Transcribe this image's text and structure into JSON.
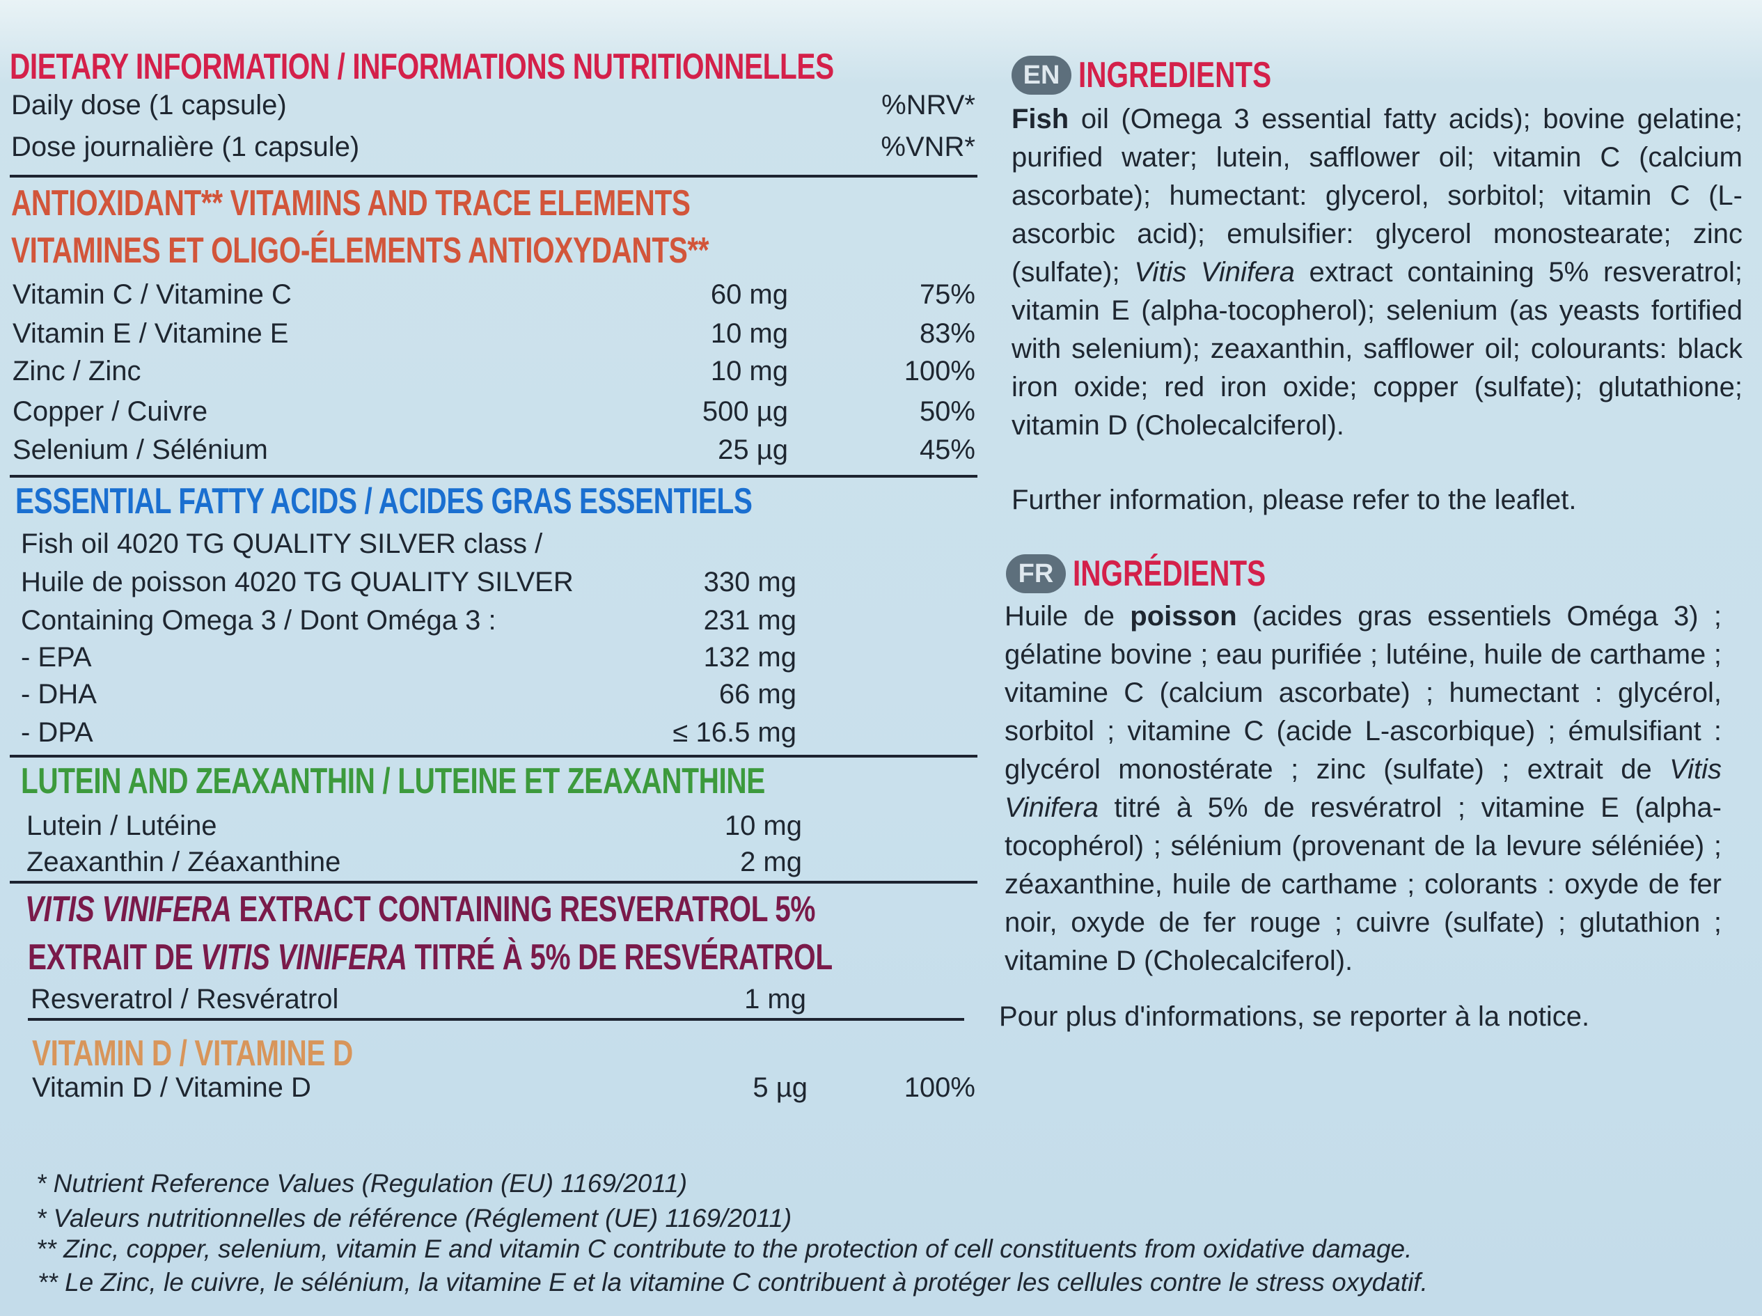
{
  "colors": {
    "background": "#cde2ec",
    "title": "#d4204a",
    "antioxidant": "#d2553a",
    "fatty_acids": "#1a6fd0",
    "lutein": "#3c9a3c",
    "vitis": "#7a1a4a",
    "vitamin_d": "#d8955a"
  },
  "dietary": {
    "title": "DIETARY INFORMATION / INFORMATIONS NUTRITIONNELLES",
    "dose_en": "Daily dose (1 capsule)",
    "nrv_en": "%NRV*",
    "dose_fr": "Dose journalière (1 capsule)",
    "nrv_fr": "%VNR*",
    "antioxidant": {
      "heading_en": "ANTIOXIDANT** VITAMINS AND TRACE ELEMENTS",
      "heading_fr": "VITAMINES ET OLIGO-ÉLEMENTS ANTIOXYDANTS**",
      "rows": [
        {
          "label": "Vitamin C / Vitamine C",
          "amount": "60 mg",
          "nrv": "75%"
        },
        {
          "label": "Vitamin E / Vitamine E",
          "amount": "10 mg",
          "nrv": "83%"
        },
        {
          "label": "Zinc / Zinc",
          "amount": "10 mg",
          "nrv": "100%"
        },
        {
          "label": "Copper / Cuivre",
          "amount": "500 µg",
          "nrv": "50%"
        },
        {
          "label": "Selenium / Sélénium",
          "amount": "25 µg",
          "nrv": "45%"
        }
      ]
    },
    "fatty_acids": {
      "heading": "ESSENTIAL FATTY ACIDS / ACIDES GRAS ESSENTIELS",
      "rows": [
        {
          "label": "Fish oil 4020 TG QUALITY SILVER class /",
          "amount": ""
        },
        {
          "label": "Huile de poisson 4020 TG QUALITY SILVER",
          "amount": "330 mg"
        },
        {
          "label": "Containing Omega 3 / Dont Oméga 3 :",
          "amount": "231 mg"
        },
        {
          "label": "- EPA",
          "amount": "132 mg"
        },
        {
          "label": "- DHA",
          "amount": "66 mg"
        },
        {
          "label": "- DPA",
          "amount": "≤ 16.5 mg"
        }
      ]
    },
    "lutein": {
      "heading": "LUTEIN AND ZEAXANTHIN / LUTEINE ET ZEAXANTHINE",
      "rows": [
        {
          "label": "Lutein / Lutéine",
          "amount": "10 mg"
        },
        {
          "label": "Zeaxanthin / Zéaxanthine",
          "amount": "2 mg"
        }
      ]
    },
    "vitis": {
      "h1_italic": "VITIS VINIFERA",
      "h1_rest": " EXTRACT CONTAINING RESVERATROL 5%",
      "h2_pre": "EXTRAIT DE ",
      "h2_italic": "VITIS VINIFERA",
      "h2_rest": " TITRÉ À 5% DE RESVÉRATROL",
      "rows": [
        {
          "label": "Resveratrol / Resvératrol",
          "amount": "1 mg"
        }
      ]
    },
    "vitamin_d": {
      "heading": "VITAMIN D / VITAMINE D",
      "rows": [
        {
          "label": "Vitamin D / Vitamine D",
          "amount": "5 µg",
          "nrv": "100%"
        }
      ]
    }
  },
  "ingredients_en": {
    "badge": "EN",
    "title": "INGREDIENTS",
    "s0": "Fish",
    "s1": " oil (Omega 3 essential fatty acids); bovine gelatine; purified water; lutein, safflower oil; vitamin C (calcium ascorbate); humectant: glycerol, sorbitol; vitamin C (L-ascorbic acid); emulsifier: glycerol monostearate; zinc (sulfate); ",
    "s2": "Vitis Vinifera",
    "s3": " extract containing 5% resveratrol; vitamin E (alpha-tocopherol); selenium (as yeasts fortified with selenium); zeaxanthin, safflower oil; colourants: black iron oxide; red iron oxide; copper (sulfate); glutathione; vitamin D (Cholecalciferol).",
    "note": "Further information, please refer to the leaflet."
  },
  "ingredients_fr": {
    "badge": "FR",
    "title": "INGRÉDIENTS",
    "s0": "Huile de ",
    "s1": "poisson",
    "s2": " (acides gras essentiels Oméga 3) ; gélatine bovine ; eau purifiée ; lutéine, huile de carthame ; vitamine C (calcium ascorbate) ; humectant : glycérol, sorbitol ; vitamine C (acide L-ascorbique) ; émulsifiant : glycérol monostérate ; zinc (sulfate) ; extrait de ",
    "s3": "Vitis Vinifera",
    "s4": " titré à 5% de resvératrol ; vitamine E (alpha-tocophérol) ; sélénium (provenant de la levure séléniée) ; zéaxanthine, huile de carthame ; colorants : oxyde de fer noir, oxyde de fer rouge ; cuivre (sulfate) ; glutathion ; vitamine D (Cholecalciferol).",
    "note": "Pour plus d'informations, se reporter à la notice."
  },
  "footnotes": [
    "*  Nutrient Reference Values (Regulation (EU) 1169/2011)",
    "*  Valeurs nutritionnelles de référence (Réglement (UE) 1169/2011)",
    "** Zinc, copper, selenium, vitamin E and vitamin C contribute to the protection of cell constituents from oxidative damage.",
    "** Le Zinc, le cuivre, le sélénium, la vitamine E et la vitamine C contribuent à protéger les cellules contre le stress oxydatif."
  ]
}
